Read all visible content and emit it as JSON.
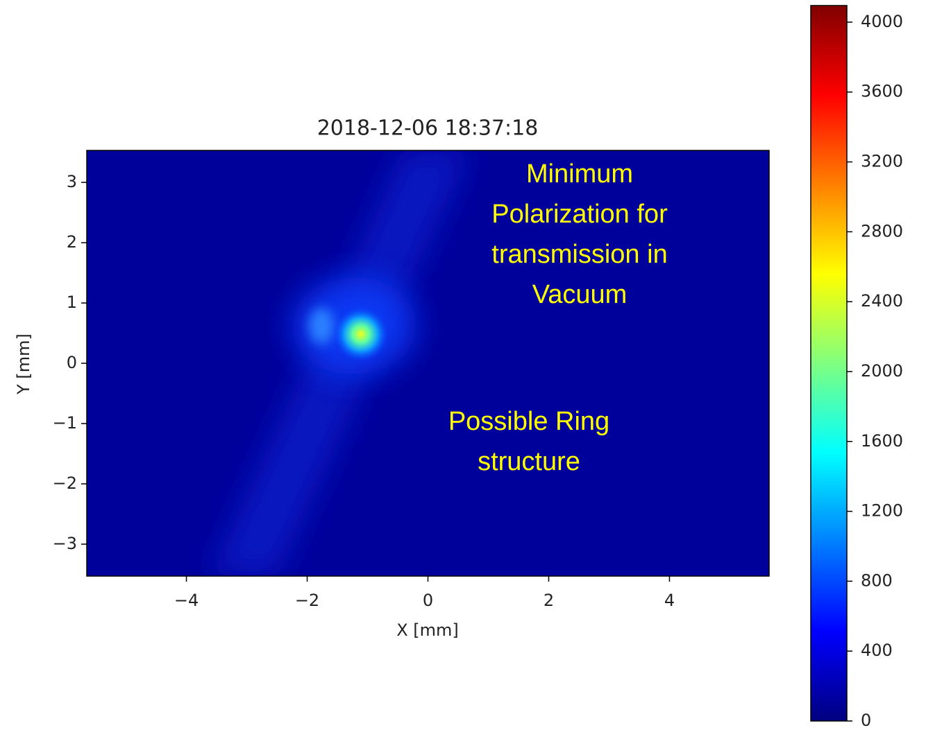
{
  "chart_data": {
    "type": "heatmap",
    "title": "2018-12-06 18:37:18",
    "xlabel": "X [mm]",
    "ylabel": "Y [mm]",
    "xlim": [
      -5.65,
      5.65
    ],
    "xticks": [
      {
        "value": -4,
        "label": "−4"
      },
      {
        "value": -2,
        "label": "−2"
      },
      0,
      2,
      4
    ],
    "ylim": [
      -3.53,
      3.53
    ],
    "yticks": [
      {
        "value": -3,
        "label": "−3"
      },
      {
        "value": -2,
        "label": "−2"
      },
      {
        "value": -1,
        "label": "−1"
      },
      0,
      1,
      2,
      3
    ],
    "colormap": "jet",
    "clim": [
      0,
      4095
    ],
    "cticks": [
      0,
      400,
      800,
      1200,
      1600,
      2000,
      2400,
      2800,
      3200,
      3600,
      4000
    ],
    "annotations": [
      {
        "lines": [
          "Minimum",
          "Polarization for",
          "transmission in",
          "Vacuum"
        ],
        "color": "#ffff00"
      },
      {
        "lines": [
          "Possible Ring",
          "structure"
        ],
        "color": "#ffff00"
      }
    ]
  }
}
